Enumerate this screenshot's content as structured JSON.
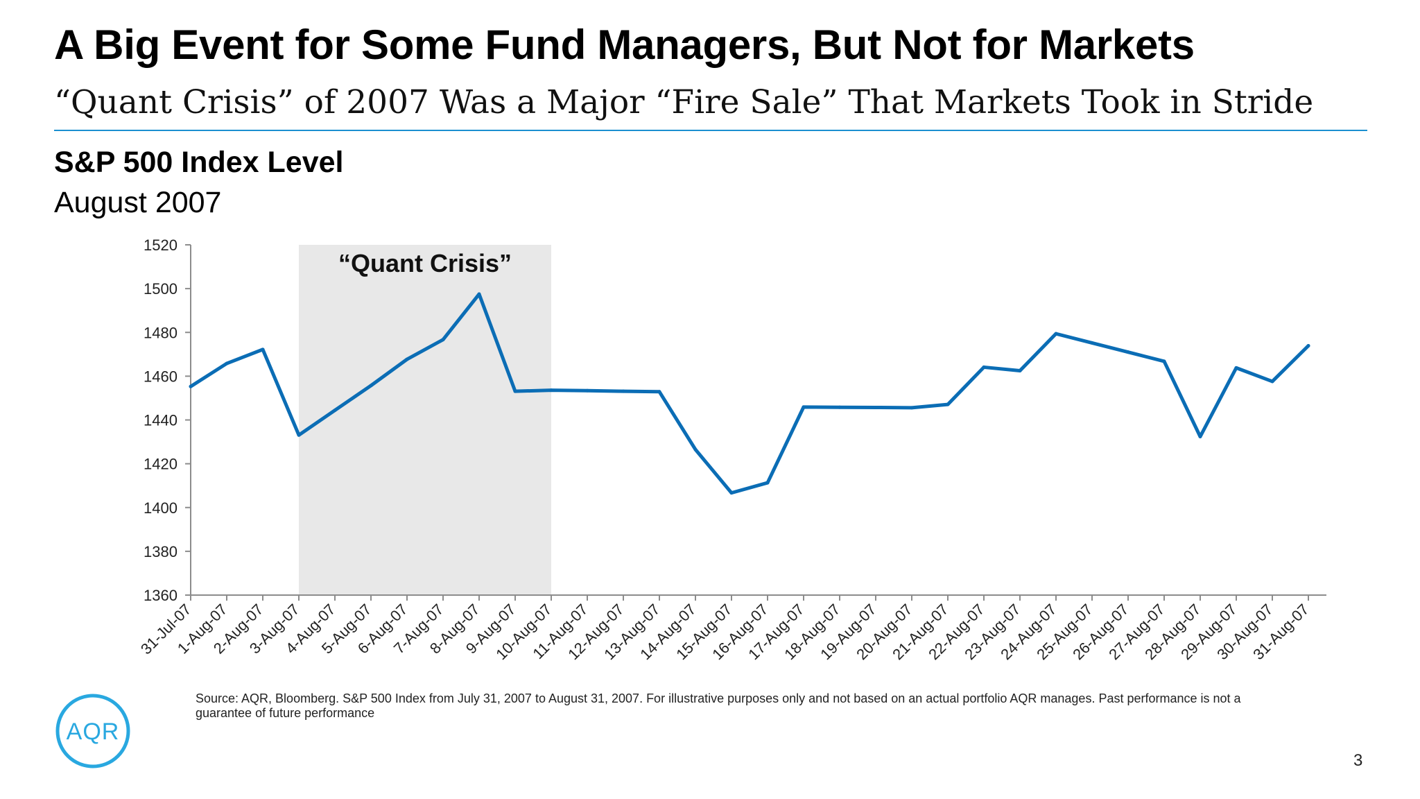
{
  "slide": {
    "title": "A Big Event for Some Fund Managers, But Not for Markets",
    "subtitle": "“Quant Crisis” of 2007 Was a Major “Fire Sale” That Markets Took in Stride",
    "page_number": "3"
  },
  "chart_heading": "S&P 500 Index Level",
  "chart_period": "August 2007",
  "source_note": "Source: AQR, Bloomberg. S&P 500 Index from July 31, 2007 to August 31, 2007. For illustrative purposes only and not based on an actual portfolio AQR manages. Past performance is not a guarantee of future performance",
  "logo": {
    "text": "AQR",
    "color": "#29a8e0"
  },
  "chart_data": {
    "type": "line",
    "title": "S&P 500 Index Level",
    "subtitle": "August 2007",
    "xlabel": "",
    "ylabel": "",
    "ylim": [
      1360,
      1520
    ],
    "yticks": [
      1360,
      1380,
      1400,
      1420,
      1440,
      1460,
      1480,
      1500,
      1520
    ],
    "grid": false,
    "legend": "none",
    "line_color": "#0b6db5",
    "categories": [
      "31-Jul-07",
      "1-Aug-07",
      "2-Aug-07",
      "3-Aug-07",
      "4-Aug-07",
      "5-Aug-07",
      "6-Aug-07",
      "7-Aug-07",
      "8-Aug-07",
      "9-Aug-07",
      "10-Aug-07",
      "11-Aug-07",
      "12-Aug-07",
      "13-Aug-07",
      "14-Aug-07",
      "15-Aug-07",
      "16-Aug-07",
      "17-Aug-07",
      "18-Aug-07",
      "19-Aug-07",
      "20-Aug-07",
      "21-Aug-07",
      "22-Aug-07",
      "23-Aug-07",
      "24-Aug-07",
      "25-Aug-07",
      "26-Aug-07",
      "27-Aug-07",
      "28-Aug-07",
      "29-Aug-07",
      "30-Aug-07",
      "31-Aug-07"
    ],
    "values": [
      1455.3,
      1465.8,
      1472.2,
      1433.1,
      1444.4,
      1455.7,
      1467.7,
      1476.7,
      1497.5,
      1453.1,
      1453.6,
      1453.4,
      1453.1,
      1452.9,
      1426.5,
      1406.7,
      1411.3,
      1445.9,
      1445.8,
      1445.7,
      1445.6,
      1447.1,
      1464.1,
      1462.5,
      1479.4,
      1475.2,
      1471.0,
      1466.8,
      1432.4,
      1463.8,
      1457.6,
      1473.9
    ],
    "annotations": [
      {
        "type": "shaded_region",
        "label": "“Quant Crisis”",
        "x_start": "3-Aug-07",
        "x_end": "10-Aug-07",
        "color": "#e8e8e8"
      }
    ]
  }
}
